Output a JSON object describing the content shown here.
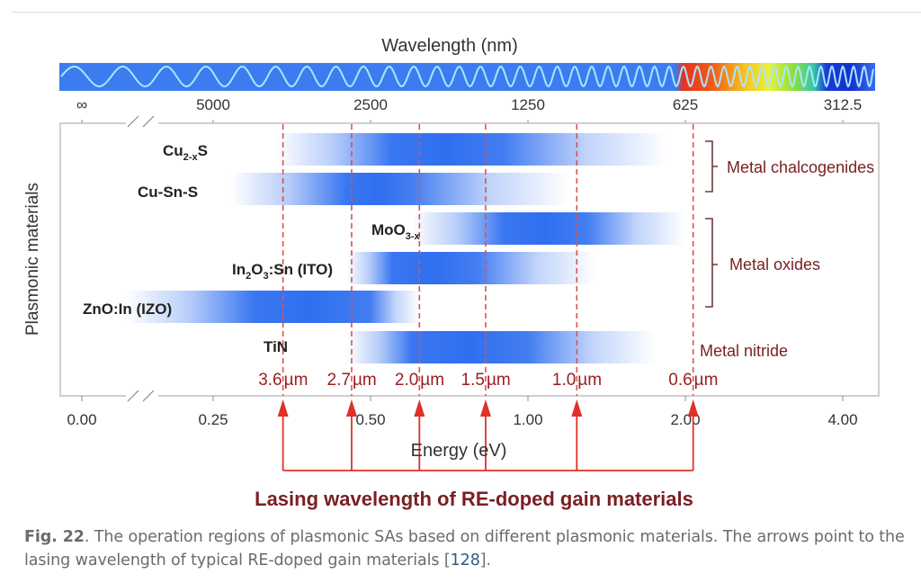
{
  "chart_data": {
    "type": "bar",
    "subtype": "range-bands",
    "top_axis": {
      "title": "Wavelength (nm)",
      "ticks": [
        "∞",
        "5000",
        "2500",
        "1250",
        "625",
        "312.5"
      ]
    },
    "bottom_axis": {
      "title": "Energy (eV)",
      "ticks": [
        "0.00",
        "0.25",
        "0.50",
        "1.00",
        "2.00",
        "4.00"
      ],
      "tick_values": [
        0.0,
        0.25,
        0.5,
        1.0,
        2.0,
        4.0
      ],
      "scale": "log2 with axis break between 0.00 and 0.25"
    },
    "ylabel": "Plasmonic materials",
    "materials": [
      {
        "label_main": "Cu",
        "label_sub": "2-x",
        "label_tail": "S",
        "group": "Metal chalcogenides",
        "range_ev": [
          0.33,
          1.85
        ],
        "peak_ev": [
          0.55,
          0.9
        ]
      },
      {
        "label_main": "Cu-Sn-S",
        "label_sub": "",
        "label_tail": "",
        "group": "Metal chalcogenides",
        "range_ev": [
          0.27,
          1.2
        ],
        "peak_ev": [
          0.45,
          0.6
        ]
      },
      {
        "label_main": "MoO",
        "label_sub": "3-x",
        "label_tail": "",
        "group": "Metal oxides",
        "range_ev": [
          0.6,
          2.0
        ],
        "peak_ev": [
          0.9,
          1.3
        ]
      },
      {
        "label_main": "In",
        "label_sub": "2",
        "label_mid": "O",
        "label_sub2": "3",
        "label_tail": ":Sn (ITO)",
        "group": "Metal oxides",
        "range_ev": [
          0.45,
          1.35
        ],
        "peak_ev": [
          0.55,
          0.8
        ]
      },
      {
        "label_main": "ZnO:In (IZO)",
        "label_sub": "",
        "label_tail": "",
        "group": "Metal oxides",
        "range_ev": [
          0.17,
          0.62
        ],
        "peak_ev": [
          0.3,
          0.5
        ]
      },
      {
        "label_main": "TiN",
        "label_sub": "",
        "label_tail": "",
        "group": "Metal nitride",
        "range_ev": [
          0.45,
          1.75
        ],
        "peak_ev": [
          0.6,
          1.0
        ]
      }
    ],
    "groups": [
      "Metal chalcogenides",
      "Metal oxides",
      "Metal nitride"
    ],
    "lasing_lines": [
      {
        "label_num": "3.6",
        "unit": "µm",
        "energy_ev": 0.34
      },
      {
        "label_num": "2.7",
        "unit": "µm",
        "energy_ev": 0.46
      },
      {
        "label_num": "2.0",
        "unit": "µm",
        "energy_ev": 0.62
      },
      {
        "label_num": "1.5",
        "unit": "µm",
        "energy_ev": 0.83
      },
      {
        "label_num": "1.0",
        "unit": "µm",
        "energy_ev": 1.24
      },
      {
        "label_num": "0.6",
        "unit": "µm",
        "energy_ev": 2.07
      }
    ],
    "annotation": "Lasing wavelength of RE-doped gain materials",
    "colors": {
      "band": "#2f6ff0",
      "spectrum_ir": "#3f7ef0",
      "wave": "#9fe0ff",
      "dashed_line": "#d9534f",
      "arrow": "#e0302a",
      "dark_red_text": "#7a1f22",
      "axis": "#8c8c8c"
    }
  },
  "caption": {
    "fig_label": "Fig. 22",
    "text_before": ". The operation regions of plasmonic SAs based on different plasmonic materials. The arrows point to the lasing wavelength of typical RE-doped gain materials [",
    "ref": "128",
    "text_after": "]."
  }
}
